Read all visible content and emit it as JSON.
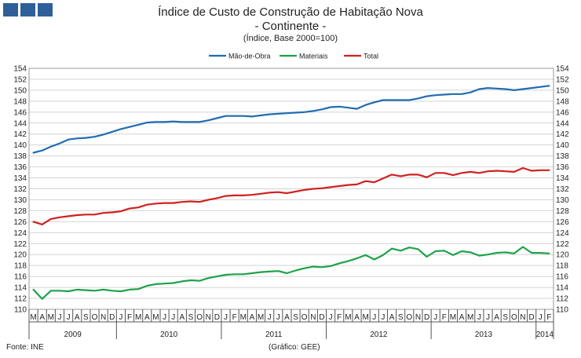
{
  "title": "Índice de Custo de Construção de Habitação Nova",
  "subtitle": "- Continente -",
  "subsubtitle": "(Índice,  Base 2000=100)",
  "source": "Fonte: INE",
  "credit": "(Gráfico: GEE)",
  "chart_data": {
    "type": "line",
    "ylim": [
      110,
      154
    ],
    "ytick_step": 2,
    "grid": true,
    "legend": "top-center",
    "months": [
      "M",
      "A",
      "M",
      "J",
      "J",
      "A",
      "S",
      "O",
      "N",
      "D",
      "J",
      "F",
      "M",
      "A",
      "M",
      "J",
      "J",
      "A",
      "S",
      "O",
      "N",
      "D",
      "J",
      "F",
      "M",
      "A",
      "M",
      "J",
      "J",
      "A",
      "S",
      "O",
      "N",
      "D",
      "J",
      "F",
      "M",
      "A",
      "M",
      "J",
      "J",
      "A",
      "S",
      "O",
      "N",
      "D",
      "J",
      "F",
      "M",
      "A",
      "M",
      "J",
      "J",
      "A",
      "S",
      "O",
      "N",
      "D",
      "J",
      "F"
    ],
    "years": [
      {
        "label": "2009",
        "start": 0,
        "count": 10
      },
      {
        "label": "2010",
        "start": 10,
        "count": 12
      },
      {
        "label": "2011",
        "start": 22,
        "count": 12
      },
      {
        "label": "2012",
        "start": 34,
        "count": 12
      },
      {
        "label": "2013",
        "start": 46,
        "count": 12
      },
      {
        "label": "2014",
        "start": 58,
        "count": 2
      }
    ],
    "series": [
      {
        "name": "Mão-de-Obra",
        "color": "#1f6db2",
        "values": [
          138.6,
          139.0,
          139.7,
          140.3,
          141.0,
          141.2,
          141.3,
          141.5,
          141.9,
          142.4,
          142.9,
          143.3,
          143.7,
          144.1,
          144.2,
          144.2,
          144.3,
          144.2,
          144.2,
          144.2,
          144.5,
          144.9,
          145.3,
          145.3,
          145.3,
          145.2,
          145.4,
          145.6,
          145.7,
          145.8,
          145.9,
          146.0,
          146.2,
          146.5,
          146.9,
          147.0,
          146.8,
          146.6,
          147.3,
          147.8,
          148.2,
          148.2,
          148.2,
          148.2,
          148.5,
          148.9,
          149.1,
          149.2,
          149.3,
          149.3,
          149.6,
          150.2,
          150.4,
          150.3,
          150.2,
          150.0,
          150.2,
          150.4,
          150.6,
          150.8
        ]
      },
      {
        "name": "Materiais",
        "color": "#1ea24a",
        "values": [
          113.6,
          111.9,
          113.4,
          113.4,
          113.3,
          113.6,
          113.5,
          113.4,
          113.6,
          113.4,
          113.3,
          113.6,
          113.7,
          114.3,
          114.6,
          114.7,
          114.8,
          115.1,
          115.3,
          115.2,
          115.7,
          116.0,
          116.3,
          116.4,
          116.4,
          116.6,
          116.8,
          116.9,
          117.0,
          116.6,
          117.1,
          117.5,
          117.8,
          117.7,
          117.9,
          118.4,
          118.8,
          119.3,
          119.9,
          119.1,
          119.9,
          121.1,
          120.7,
          121.3,
          121.0,
          119.6,
          120.6,
          120.7,
          119.9,
          120.6,
          120.4,
          119.8,
          120.0,
          120.3,
          120.4,
          120.2,
          121.4,
          120.3,
          120.3,
          120.2
        ]
      },
      {
        "name": "Total",
        "color": "#d12020",
        "values": [
          126.0,
          125.5,
          126.5,
          126.8,
          127.0,
          127.2,
          127.3,
          127.3,
          127.6,
          127.7,
          127.9,
          128.4,
          128.6,
          129.1,
          129.3,
          129.4,
          129.4,
          129.6,
          129.7,
          129.6,
          130.0,
          130.3,
          130.7,
          130.8,
          130.8,
          130.9,
          131.1,
          131.3,
          131.4,
          131.2,
          131.5,
          131.8,
          132.0,
          132.1,
          132.3,
          132.5,
          132.7,
          132.8,
          133.4,
          133.2,
          133.9,
          134.6,
          134.3,
          134.6,
          134.6,
          134.1,
          134.9,
          134.9,
          134.5,
          134.9,
          135.1,
          134.9,
          135.2,
          135.3,
          135.2,
          135.1,
          135.8,
          135.3,
          135.4,
          135.4
        ]
      }
    ]
  }
}
